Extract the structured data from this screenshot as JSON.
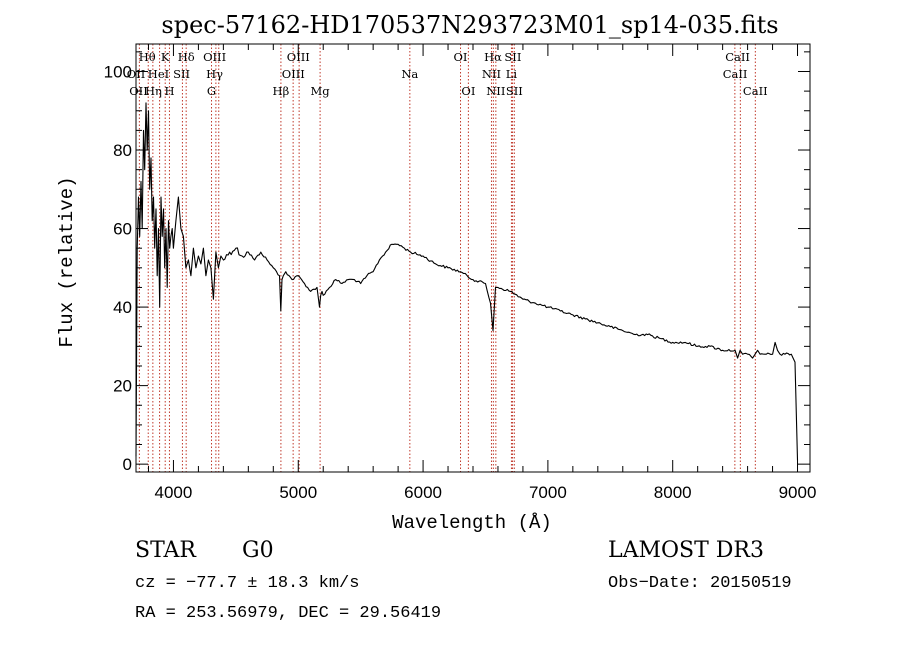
{
  "chart_data": {
    "type": "line",
    "title": "spec-57162-HD170537N293723M01_sp14-035.fits",
    "xlabel": "Wavelength (Å)",
    "ylabel": "Flux (relative)",
    "xlim": [
      3700,
      9100
    ],
    "ylim": [
      -2,
      107
    ],
    "xticks": [
      4000,
      5000,
      6000,
      7000,
      8000,
      9000
    ],
    "yticks": [
      0,
      20,
      40,
      60,
      80,
      100
    ],
    "grid": false,
    "series": [
      {
        "name": "spectrum",
        "color": "#000000",
        "x": [
          3700,
          3710,
          3720,
          3730,
          3740,
          3750,
          3760,
          3770,
          3780,
          3790,
          3800,
          3810,
          3820,
          3830,
          3840,
          3850,
          3860,
          3870,
          3880,
          3890,
          3900,
          3910,
          3920,
          3930,
          3940,
          3950,
          3960,
          3970,
          3980,
          3990,
          4000,
          4020,
          4040,
          4060,
          4080,
          4100,
          4120,
          4140,
          4160,
          4180,
          4200,
          4220,
          4240,
          4260,
          4280,
          4300,
          4320,
          4340,
          4360,
          4380,
          4400,
          4450,
          4500,
          4550,
          4600,
          4650,
          4700,
          4750,
          4800,
          4850,
          4860,
          4870,
          4880,
          4900,
          4950,
          5000,
          5050,
          5100,
          5150,
          5170,
          5180,
          5190,
          5200,
          5250,
          5300,
          5350,
          5400,
          5450,
          5500,
          5550,
          5600,
          5650,
          5700,
          5750,
          5800,
          5850,
          5900,
          6000,
          6100,
          6200,
          6300,
          6400,
          6500,
          6540,
          6560,
          6580,
          6600,
          6700,
          6800,
          6900,
          7000,
          7100,
          7200,
          7300,
          7400,
          7500,
          7600,
          7700,
          7800,
          7900,
          8000,
          8100,
          8200,
          8300,
          8400,
          8500,
          8520,
          8540,
          8560,
          8600,
          8640,
          8660,
          8680,
          8700,
          8750,
          8800,
          8820,
          8840,
          8860,
          8900,
          8950,
          8980,
          9000
        ],
        "y": [
          2,
          55,
          68,
          58,
          72,
          60,
          85,
          75,
          92,
          80,
          90,
          70,
          78,
          62,
          68,
          55,
          65,
          48,
          60,
          40,
          68,
          58,
          65,
          50,
          60,
          45,
          62,
          55,
          58,
          60,
          55,
          62,
          68,
          60,
          58,
          50,
          52,
          48,
          55,
          50,
          53,
          51,
          55,
          48,
          52,
          50,
          42,
          54,
          50,
          53,
          52,
          54,
          55,
          53,
          54,
          52,
          54,
          52,
          50,
          48,
          39,
          47,
          48,
          49,
          47,
          48,
          46,
          44,
          45,
          40,
          43,
          44,
          43,
          45,
          47,
          46,
          47,
          47,
          46,
          48,
          49,
          52,
          54,
          56,
          56,
          55,
          54,
          53,
          51,
          50,
          49,
          47,
          46,
          41,
          34,
          45,
          45,
          44,
          42,
          41,
          40,
          39,
          38,
          37,
          36,
          35,
          34,
          33,
          33,
          32,
          31,
          31,
          30,
          30,
          29,
          29,
          27,
          29,
          28,
          28,
          27,
          28,
          29,
          28,
          28,
          28,
          31,
          29,
          28,
          28,
          28,
          26,
          1
        ]
      }
    ],
    "lines": [
      {
        "name": "OII",
        "wl": 3727
      },
      {
        "name": "Hθ",
        "wl": 3798
      },
      {
        "name": "Hη",
        "wl": 3835
      },
      {
        "name": "HeI",
        "wl": 3889
      },
      {
        "name": "K",
        "wl": 3934
      },
      {
        "name": "H",
        "wl": 3968
      },
      {
        "name": "SII",
        "wl": 4072
      },
      {
        "name": "Hδ",
        "wl": 4102
      },
      {
        "name": "G",
        "wl": 4305
      },
      {
        "name": "Hγ",
        "wl": 4340
      },
      {
        "name": "OIII",
        "wl": 4363
      },
      {
        "name": "Hβ",
        "wl": 4861
      },
      {
        "name": "OIII",
        "wl": 4959
      },
      {
        "name": "OIII",
        "wl": 5007
      },
      {
        "name": "Mg",
        "wl": 5175
      },
      {
        "name": "Na",
        "wl": 5894
      },
      {
        "name": "OI",
        "wl": 6300
      },
      {
        "name": "OI",
        "wl": 6363
      },
      {
        "name": "NII",
        "wl": 6548
      },
      {
        "name": "Hα",
        "wl": 6563
      },
      {
        "name": "NII",
        "wl": 6583
      },
      {
        "name": "Li",
        "wl": 6708
      },
      {
        "name": "SII",
        "wl": 6717
      },
      {
        "name": "SII",
        "wl": 6731
      },
      {
        "name": "CaII",
        "wl": 8498
      },
      {
        "name": "CaII",
        "wl": 8542
      },
      {
        "name": "CaII",
        "wl": 8662
      }
    ],
    "line_labels": [
      {
        "text": "Hθ",
        "wl": 3790,
        "row": 1
      },
      {
        "text": "K",
        "wl": 3934,
        "row": 1
      },
      {
        "text": "Hδ",
        "wl": 4102,
        "row": 1
      },
      {
        "text": "OIII",
        "wl": 4330,
        "row": 1
      },
      {
        "text": "OIII",
        "wl": 5000,
        "row": 1
      },
      {
        "text": "OI",
        "wl": 6300,
        "row": 1
      },
      {
        "text": "Hα",
        "wl": 6560,
        "row": 1
      },
      {
        "text": "SII",
        "wl": 6720,
        "row": 1
      },
      {
        "text": "CaII",
        "wl": 8520,
        "row": 1
      },
      {
        "text": "OII",
        "wl": 3700,
        "row": 2
      },
      {
        "text": "HeI",
        "wl": 3880,
        "row": 2
      },
      {
        "text": "SII",
        "wl": 4065,
        "row": 2
      },
      {
        "text": "Hγ",
        "wl": 4330,
        "row": 2
      },
      {
        "text": "OIII",
        "wl": 4960,
        "row": 2
      },
      {
        "text": "Na",
        "wl": 5894,
        "row": 2
      },
      {
        "text": "NII",
        "wl": 6548,
        "row": 2
      },
      {
        "text": "Li",
        "wl": 6708,
        "row": 2
      },
      {
        "text": "CaII",
        "wl": 8500,
        "row": 2
      },
      {
        "text": "OII",
        "wl": 3720,
        "row": 3
      },
      {
        "text": "Hη",
        "wl": 3840,
        "row": 3
      },
      {
        "text": "H",
        "wl": 3968,
        "row": 3
      },
      {
        "text": "G",
        "wl": 4305,
        "row": 3
      },
      {
        "text": "Hβ",
        "wl": 4861,
        "row": 3
      },
      {
        "text": "Mg",
        "wl": 5175,
        "row": 3
      },
      {
        "text": "OI",
        "wl": 6363,
        "row": 3
      },
      {
        "text": "NII",
        "wl": 6583,
        "row": 3
      },
      {
        "text": "SII",
        "wl": 6731,
        "row": 3
      },
      {
        "text": "CaII",
        "wl": 8662,
        "row": 3
      }
    ]
  },
  "info": {
    "object_class": "STAR",
    "subclass": "G0",
    "survey": "LAMOST DR3",
    "cz": "cz = −77.7 ± 18.3 km/s",
    "obs_date": "Obs−Date: 20150519",
    "coords": "RA = 253.56979, DEC =  29.56419"
  },
  "colors": {
    "spectrum": "#000000",
    "line_marker": "#c0392b",
    "axis": "#000000",
    "background": "#ffffff"
  }
}
